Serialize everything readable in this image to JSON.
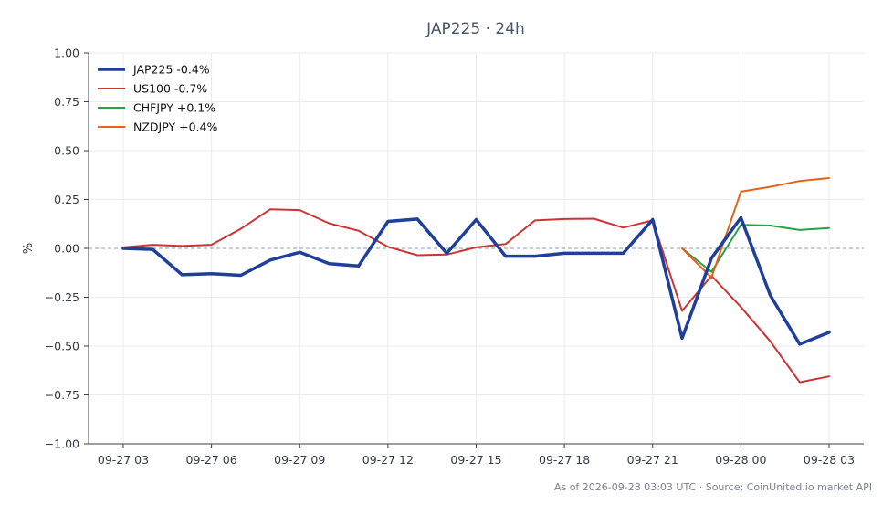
{
  "chart_data": {
    "type": "line",
    "title": "JAP225 · 24h",
    "ylabel": "%",
    "xlabel": "",
    "ylim": [
      -1.0,
      1.0
    ],
    "yticks": [
      "1.00",
      "0.75",
      "0.50",
      "0.25",
      "0.00",
      "−0.25",
      "−0.50",
      "−0.75",
      "−1.00"
    ],
    "ytick_values": [
      1.0,
      0.75,
      0.5,
      0.25,
      0.0,
      -0.25,
      -0.5,
      -0.75,
      -1.0
    ],
    "x_start": "09-27 03:00",
    "x_end": "09-28 03:00",
    "xticks": [
      {
        "label": "09-27 03",
        "hour": 3
      },
      {
        "label": "09-27 06",
        "hour": 6
      },
      {
        "label": "09-27 09",
        "hour": 9
      },
      {
        "label": "09-27 12",
        "hour": 12
      },
      {
        "label": "09-27 15",
        "hour": 15
      },
      {
        "label": "09-27 18",
        "hour": 18
      },
      {
        "label": "09-27 21",
        "hour": 21
      },
      {
        "label": "09-28 00",
        "hour": 24
      },
      {
        "label": "09-28 03",
        "hour": 27
      }
    ],
    "grid": true,
    "legend_position": "top-left",
    "series": [
      {
        "name": "JAP225 -0.4%",
        "color": "#1f3f9a",
        "width": 3.5,
        "x": [
          3,
          4,
          5,
          6,
          7,
          8,
          9,
          10,
          11,
          12,
          13,
          14,
          15,
          16,
          17,
          18,
          19,
          20,
          21,
          22,
          23,
          24,
          25,
          26,
          27
        ],
        "y": [
          0.0,
          -0.005,
          -0.135,
          -0.13,
          -0.138,
          -0.06,
          -0.02,
          -0.078,
          -0.09,
          0.138,
          0.15,
          -0.025,
          0.147,
          -0.04,
          -0.04,
          -0.025,
          -0.025,
          -0.025,
          0.147,
          -0.46,
          -0.05,
          0.157,
          -0.24,
          -0.49,
          -0.43
        ]
      },
      {
        "name": "US100 -0.7%",
        "color": "#cc3333",
        "width": 2,
        "x": [
          3,
          4,
          5,
          6,
          7,
          8,
          9,
          10,
          11,
          12,
          13,
          14,
          15,
          16,
          17,
          18,
          19,
          20,
          21,
          22,
          23,
          24,
          25,
          26,
          27
        ],
        "y": [
          0.005,
          0.018,
          0.012,
          0.018,
          0.1,
          0.2,
          0.196,
          0.128,
          0.09,
          0.008,
          -0.035,
          -0.032,
          0.005,
          0.022,
          0.143,
          0.15,
          0.152,
          0.106,
          0.143,
          -0.32,
          -0.14,
          -0.3,
          -0.475,
          -0.685,
          -0.655
        ]
      },
      {
        "name": "CHFJPY +0.1%",
        "color": "#2ca04a",
        "width": 2,
        "x": [
          22,
          23,
          24,
          25,
          26,
          27
        ],
        "y": [
          0.0,
          -0.12,
          0.12,
          0.117,
          0.094,
          0.104
        ]
      },
      {
        "name": "NZDJPY +0.4%",
        "color": "#e0651a",
        "width": 2,
        "x": [
          22,
          23,
          24,
          25,
          26,
          27
        ],
        "y": [
          0.0,
          -0.15,
          0.29,
          0.315,
          0.345,
          0.36
        ]
      }
    ]
  },
  "footer": "As of 2026-09-28 03:03 UTC · Source: CoinUnited.io market API"
}
